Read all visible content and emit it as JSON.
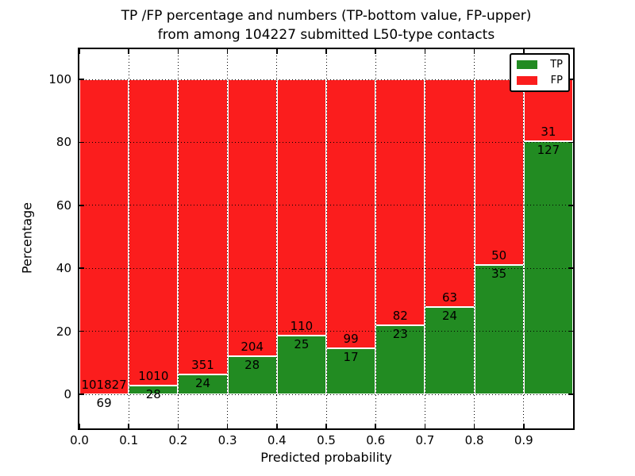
{
  "title": {
    "line1": "TP /FP percentage and numbers (TP-bottom value, FP-upper)",
    "line2": "from among 104227 submitted L50-type contacts"
  },
  "axes": {
    "xlabel": "Predicted probability",
    "ylabel": "Percentage",
    "xticks": [
      "0.0",
      "0.1",
      "0.2",
      "0.3",
      "0.4",
      "0.5",
      "0.6",
      "0.7",
      "0.8",
      "0.9"
    ],
    "yticks": [
      "0",
      "20",
      "40",
      "60",
      "80",
      "100"
    ]
  },
  "colors": {
    "tp_green": "#228b22",
    "fp_red": "#fb1d1d",
    "grid": "#000000",
    "background": "#ffffff",
    "text": "#000000"
  },
  "chart_data": {
    "type": "bar",
    "stacked": true,
    "normalized_to_percent": true,
    "title": "TP /FP percentage and numbers (TP-bottom value, FP-upper) from among 104227 submitted L50-type contacts",
    "xlabel": "Predicted probability",
    "ylabel": "Percentage",
    "total_submitted": 104227,
    "categories": [
      "0.0-0.1",
      "0.1-0.2",
      "0.2-0.3",
      "0.3-0.4",
      "0.4-0.5",
      "0.5-0.6",
      "0.6-0.7",
      "0.7-0.8",
      "0.8-0.9",
      "0.9-1.0"
    ],
    "series": [
      {
        "name": "TP",
        "color": "#228b22",
        "values": [
          69,
          28,
          24,
          28,
          25,
          17,
          23,
          24,
          35,
          127
        ]
      },
      {
        "name": "FP",
        "color": "#fb1d1d",
        "values": [
          101827,
          1010,
          351,
          204,
          110,
          99,
          82,
          63,
          50,
          31
        ]
      }
    ],
    "tp_percent_of_bin": [
      0.07,
      2.7,
      6.4,
      12.07,
      18.52,
      14.66,
      21.9,
      27.59,
      41.18,
      80.38
    ],
    "xlim": [
      0.0,
      1.0
    ],
    "ylim": [
      -11,
      110
    ],
    "grid": "dotted",
    "legend_position": "upper right"
  }
}
